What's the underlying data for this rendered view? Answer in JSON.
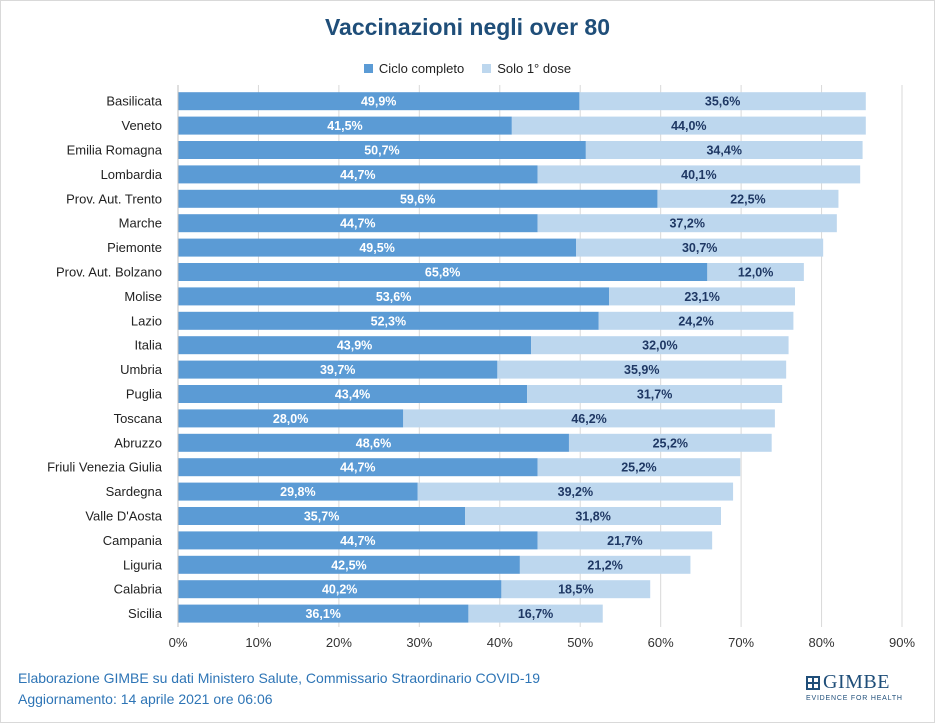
{
  "chart_data": {
    "type": "bar",
    "orientation": "horizontal",
    "stacked": true,
    "title": "Vaccinazioni negli over 80",
    "legend_position": "top",
    "grid": true,
    "xlim": [
      0,
      90
    ],
    "x_ticks": [
      "0%",
      "10%",
      "20%",
      "30%",
      "40%",
      "50%",
      "60%",
      "70%",
      "80%",
      "90%"
    ],
    "categories": [
      "Basilicata",
      "Veneto",
      "Emilia Romagna",
      "Lombardia",
      "Prov. Aut. Trento",
      "Marche",
      "Piemonte",
      "Prov. Aut. Bolzano",
      "Molise",
      "Lazio",
      "Italia",
      "Umbria",
      "Puglia",
      "Toscana",
      "Abruzzo",
      "Friuli Venezia Giulia",
      "Sardegna",
      "Valle D'Aosta",
      "Campania",
      "Liguria",
      "Calabria",
      "Sicilia"
    ],
    "series": [
      {
        "name": "Ciclo completo",
        "color": "#5b9bd5",
        "values": [
          49.9,
          41.5,
          50.7,
          44.7,
          59.6,
          44.7,
          49.5,
          65.8,
          53.6,
          52.3,
          43.9,
          39.7,
          43.4,
          28.0,
          48.6,
          44.7,
          29.8,
          35.7,
          44.7,
          42.5,
          40.2,
          36.1
        ],
        "labels": [
          "49,9%",
          "41,5%",
          "50,7%",
          "44,7%",
          "59,6%",
          "44,7%",
          "49,5%",
          "65,8%",
          "53,6%",
          "52,3%",
          "43,9%",
          "39,7%",
          "43,4%",
          "28,0%",
          "48,6%",
          "44,7%",
          "29,8%",
          "35,7%",
          "44,7%",
          "42,5%",
          "40,2%",
          "36,1%"
        ]
      },
      {
        "name": "Solo 1° dose",
        "color": "#bdd7ee",
        "values": [
          35.6,
          44.0,
          34.4,
          40.1,
          22.5,
          37.2,
          30.7,
          12.0,
          23.1,
          24.2,
          32.0,
          35.9,
          31.7,
          46.2,
          25.2,
          25.2,
          39.2,
          31.8,
          21.7,
          21.2,
          18.5,
          16.7
        ],
        "labels": [
          "35,6%",
          "44,0%",
          "34,4%",
          "40,1%",
          "22,5%",
          "37,2%",
          "30,7%",
          "12,0%",
          "23,1%",
          "24,2%",
          "32,0%",
          "35,9%",
          "31,7%",
          "46,2%",
          "25,2%",
          "25,2%",
          "39,2%",
          "31,8%",
          "21,7%",
          "21,2%",
          "18,5%",
          "16,7%"
        ]
      }
    ]
  },
  "footer": {
    "line1": "Elaborazione GIMBE su dati Ministero Salute, Commissario Straordinario COVID-19",
    "line2": "Aggiornamento: 14 aprile 2021 ore 06:06"
  },
  "logo": {
    "name": "GIMBE",
    "tagline": "EVIDENCE FOR HEALTH"
  }
}
